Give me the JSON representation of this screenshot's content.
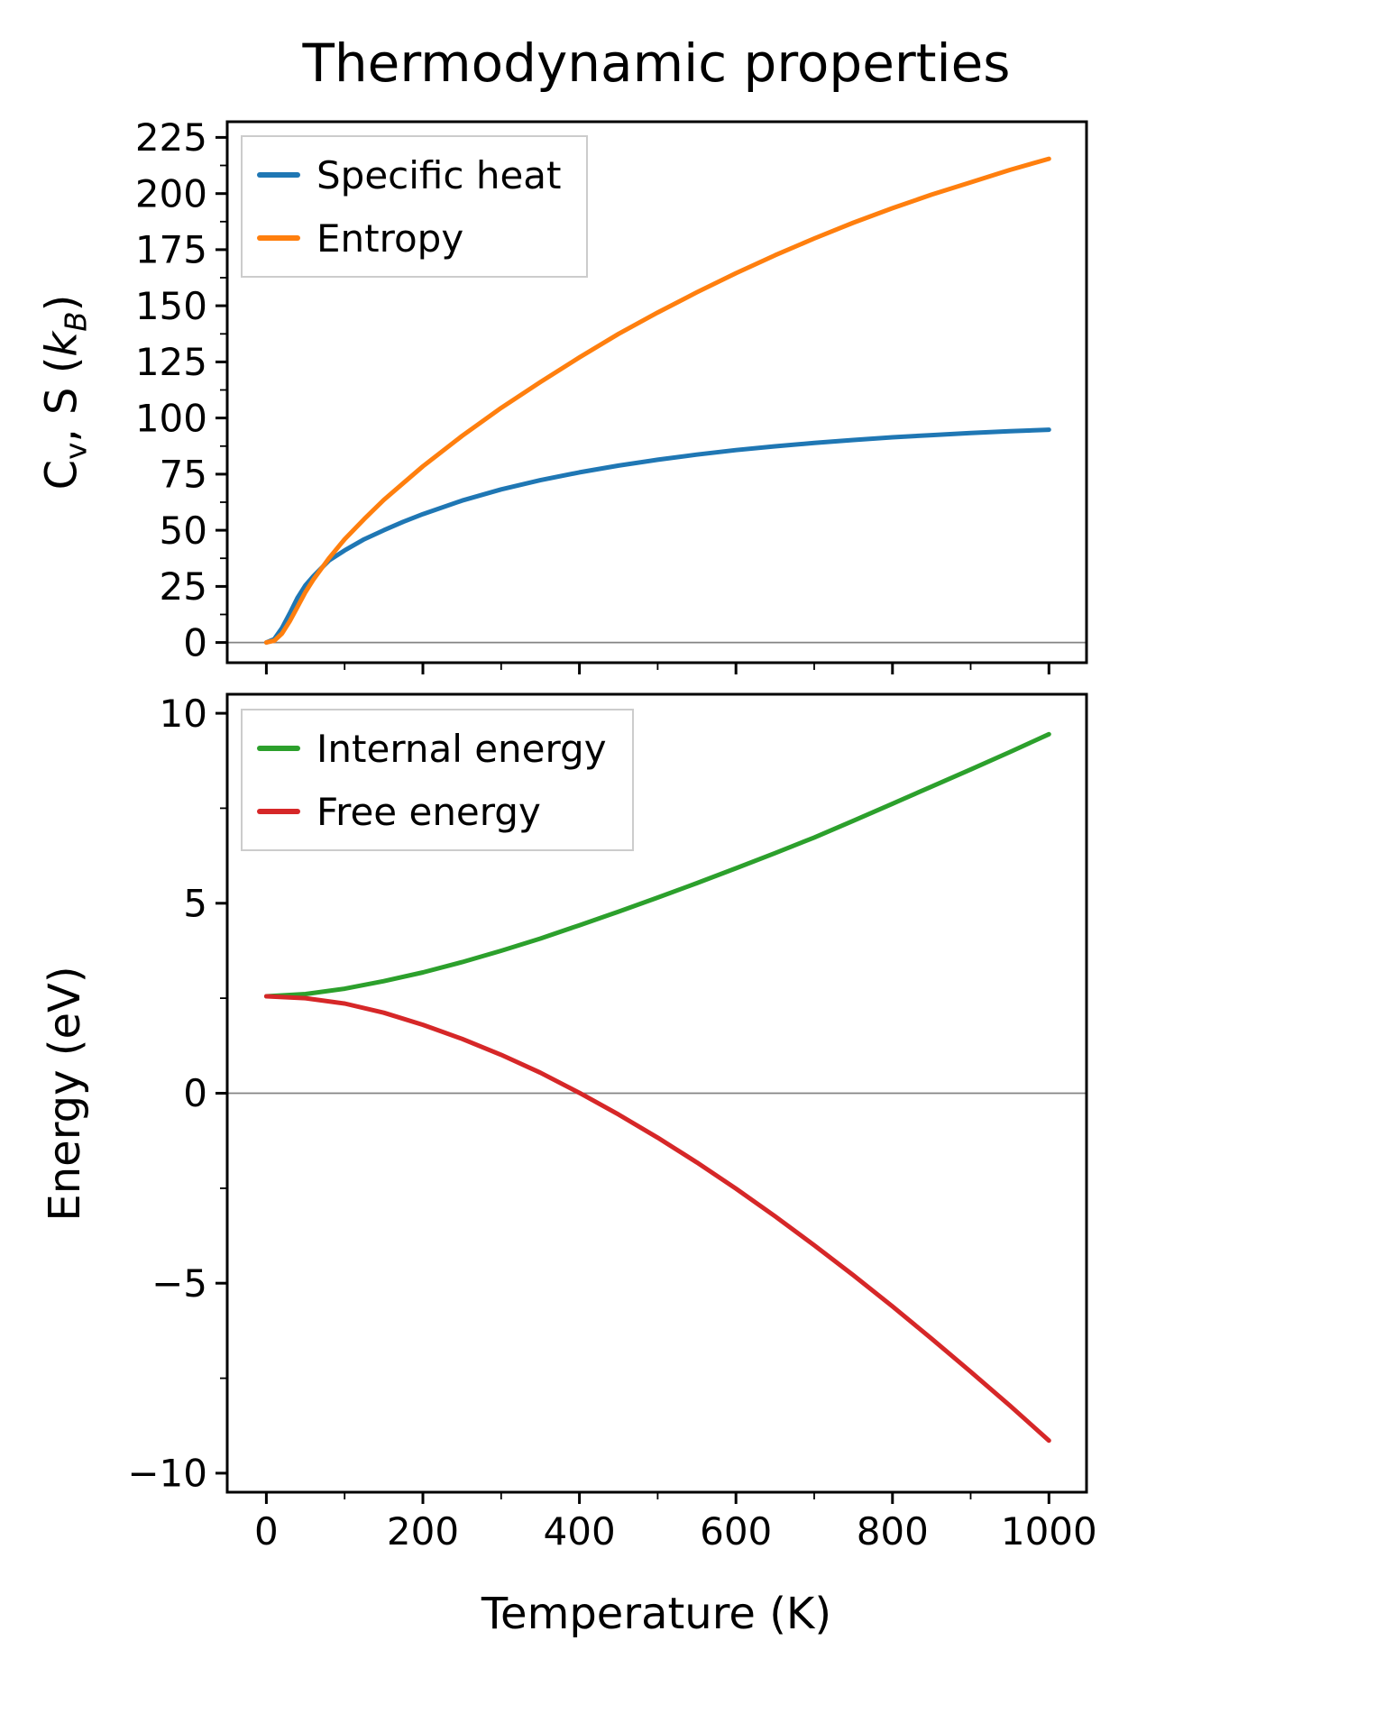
{
  "title": "Thermodynamic properties",
  "xlabel": "Temperature (K)",
  "colors": {
    "specific_heat": "#1f77b4",
    "entropy": "#ff7f0e",
    "internal_energy": "#2ca02c",
    "free_energy": "#d62728",
    "zero_line": "#848484",
    "axis": "#000000",
    "legend_border": "#cccccc"
  },
  "chart_data": [
    {
      "type": "line",
      "title": "",
      "ylabel": "Cv, S (kB)",
      "ylabel_parts": {
        "p1": "C",
        "s1": "v",
        "p2": ", S (",
        "p3": "k",
        "s2": "B",
        "p4": ")"
      },
      "x": [
        0,
        10,
        20,
        30,
        40,
        50,
        60,
        80,
        100,
        125,
        150,
        175,
        200,
        250,
        300,
        350,
        400,
        450,
        500,
        550,
        600,
        650,
        700,
        750,
        800,
        850,
        900,
        950,
        1000
      ],
      "series": [
        {
          "name": "Specific heat",
          "color": "#1f77b4",
          "values": [
            0,
            1.5,
            6.5,
            13,
            20,
            25.5,
            29.5,
            36.5,
            41,
            46,
            50,
            53.8,
            57.2,
            63.2,
            68.2,
            72.3,
            75.8,
            78.8,
            81.4,
            83.7,
            85.7,
            87.4,
            88.9,
            90.2,
            91.4,
            92.4,
            93.3,
            94.1,
            94.8
          ]
        },
        {
          "name": "Entropy",
          "color": "#ff7f0e",
          "values": [
            0,
            0.8,
            4,
            9.5,
            16,
            22.5,
            28,
            37.5,
            46,
            55,
            63.5,
            71,
            78.5,
            92,
            104.5,
            116,
            127,
            137.5,
            147,
            156,
            164.5,
            172.5,
            180,
            187,
            193.5,
            199.5,
            205,
            210.5,
            215.5
          ]
        }
      ],
      "xlim": [
        -50,
        1048
      ],
      "ylim": [
        -9,
        232
      ],
      "yticks": [
        0,
        25,
        50,
        75,
        100,
        125,
        150,
        175,
        200,
        225
      ],
      "xticks": [
        0,
        200,
        400,
        600,
        800,
        1000
      ],
      "xtick_labels_visible": false,
      "zero_line": true,
      "grid": false,
      "legend_position": "upper left"
    },
    {
      "type": "line",
      "title": "",
      "ylabel": "Energy (eV)",
      "x": [
        0,
        50,
        100,
        150,
        200,
        250,
        300,
        350,
        400,
        450,
        500,
        550,
        600,
        650,
        700,
        750,
        800,
        850,
        900,
        950,
        1000
      ],
      "series": [
        {
          "name": "Internal energy",
          "color": "#2ca02c",
          "values": [
            2.55,
            2.61,
            2.75,
            2.95,
            3.18,
            3.45,
            3.75,
            4.07,
            4.42,
            4.78,
            5.15,
            5.53,
            5.92,
            6.32,
            6.73,
            7.17,
            7.62,
            8.07,
            8.52,
            8.98,
            9.45
          ]
        },
        {
          "name": "Free energy",
          "color": "#d62728",
          "values": [
            2.55,
            2.5,
            2.36,
            2.12,
            1.8,
            1.43,
            1.01,
            0.54,
            0.01,
            -0.56,
            -1.17,
            -1.82,
            -2.51,
            -3.24,
            -4.0,
            -4.79,
            -5.61,
            -6.46,
            -7.33,
            -8.22,
            -9.14
          ]
        }
      ],
      "xlim": [
        -50,
        1048
      ],
      "ylim": [
        -10.5,
        10.5
      ],
      "yticks": [
        10,
        5,
        0,
        -5,
        -10
      ],
      "xticks": [
        0,
        200,
        400,
        600,
        800,
        1000
      ],
      "xtick_labels_visible": true,
      "zero_line": true,
      "grid": false,
      "legend_position": "upper left"
    }
  ]
}
